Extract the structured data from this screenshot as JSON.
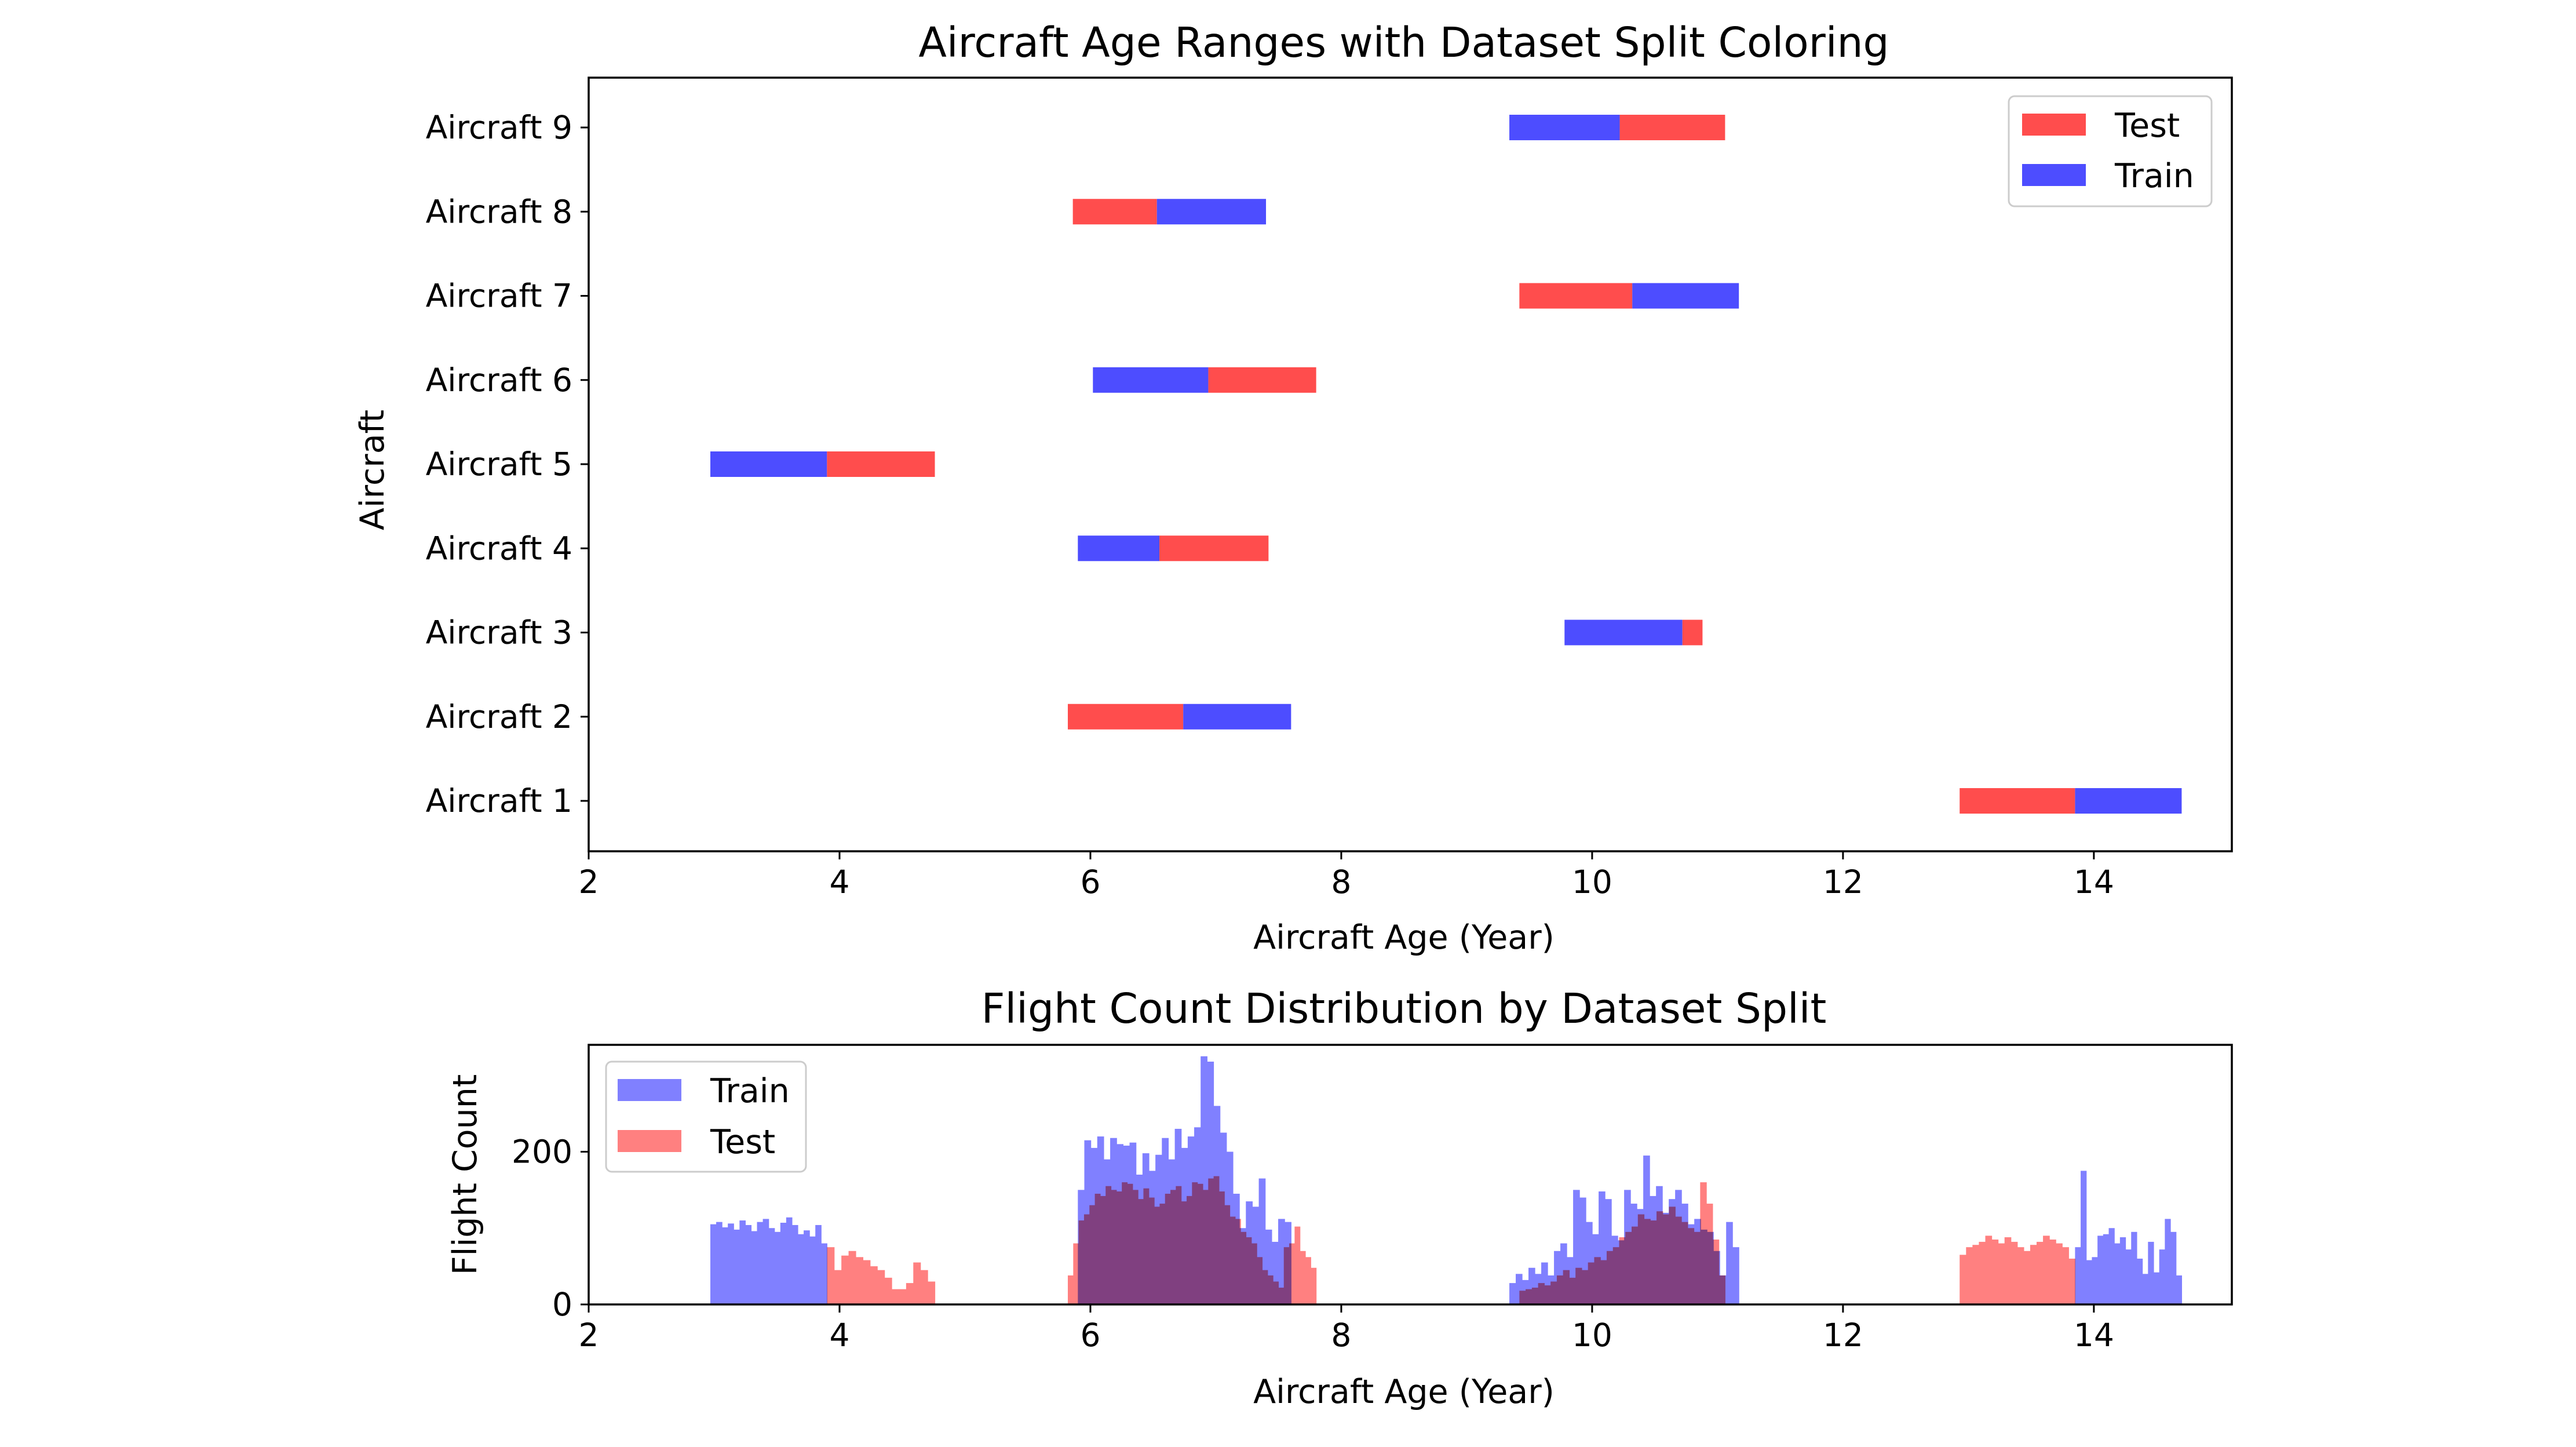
{
  "chart_data": [
    {
      "type": "gantt",
      "title": "Aircraft Age Ranges with Dataset Split Coloring",
      "xlabel": "Aircraft Age (Year)",
      "ylabel": "Aircraft",
      "xlim": [
        2,
        15.1
      ],
      "xticks": [
        "2",
        "4",
        "6",
        "8",
        "10",
        "12",
        "14"
      ],
      "grid": false,
      "legend": {
        "placement": "top-right",
        "entries": [
          "Test",
          "Train"
        ]
      },
      "colors": {
        "Test": "#ff4d4d",
        "Train": "#4d4dff"
      },
      "aircraft": [
        {
          "label": "Aircraft 1",
          "segments": [
            {
              "split": "Test",
              "start": 12.93,
              "end": 13.85
            },
            {
              "split": "Train",
              "start": 13.85,
              "end": 14.7
            }
          ]
        },
        {
          "label": "Aircraft 2",
          "segments": [
            {
              "split": "Test",
              "start": 5.82,
              "end": 6.74
            },
            {
              "split": "Train",
              "start": 6.74,
              "end": 7.6
            }
          ]
        },
        {
          "label": "Aircraft 3",
          "segments": [
            {
              "split": "Train",
              "start": 9.78,
              "end": 10.72
            },
            {
              "split": "Test",
              "start": 10.72,
              "end": 10.88
            }
          ]
        },
        {
          "label": "Aircraft 4",
          "segments": [
            {
              "split": "Train",
              "start": 5.9,
              "end": 6.55
            },
            {
              "split": "Test",
              "start": 6.55,
              "end": 7.42
            }
          ]
        },
        {
          "label": "Aircraft 5",
          "segments": [
            {
              "split": "Train",
              "start": 2.97,
              "end": 3.9
            },
            {
              "split": "Test",
              "start": 3.9,
              "end": 4.76
            }
          ]
        },
        {
          "label": "Aircraft 6",
          "segments": [
            {
              "split": "Train",
              "start": 6.02,
              "end": 6.94
            },
            {
              "split": "Test",
              "start": 6.94,
              "end": 7.8
            }
          ]
        },
        {
          "label": "Aircraft 7",
          "segments": [
            {
              "split": "Test",
              "start": 9.42,
              "end": 10.32
            },
            {
              "split": "Train",
              "start": 10.32,
              "end": 11.17
            }
          ]
        },
        {
          "label": "Aircraft 8",
          "segments": [
            {
              "split": "Test",
              "start": 5.86,
              "end": 6.53
            },
            {
              "split": "Train",
              "start": 6.53,
              "end": 7.4
            }
          ]
        },
        {
          "label": "Aircraft 9",
          "segments": [
            {
              "split": "Train",
              "start": 9.34,
              "end": 10.22
            },
            {
              "split": "Test",
              "start": 10.22,
              "end": 11.06
            }
          ]
        }
      ]
    },
    {
      "type": "histogram",
      "title": "Flight Count Distribution by Dataset Split",
      "xlabel": "Aircraft Age (Year)",
      "ylabel": "Flight Count",
      "xlim": [
        2,
        15.1
      ],
      "ylim": [
        0,
        340
      ],
      "xticks": [
        "2",
        "4",
        "6",
        "8",
        "10",
        "12",
        "14"
      ],
      "yticks": [
        "0",
        "200"
      ],
      "grid": false,
      "legend": {
        "placement": "top-left",
        "entries": [
          "Train",
          "Test"
        ]
      },
      "colors": {
        "Train": "#8080ff",
        "Test": "#ff8080",
        "overlap": "#b03a78"
      },
      "series": [
        {
          "name": "Train",
          "bins": [
            {
              "start": 2.97,
              "end": 3.9,
              "values": [
                105,
                108,
                101,
                106,
                98,
                110,
                104,
                96,
                108,
                112,
                100,
                95,
                107,
                114,
                104,
                92,
                97,
                89,
                104,
                80
              ]
            },
            {
              "start": 5.9,
              "end": 7.6,
              "values": [
                150,
                215,
                205,
                220,
                190,
                218,
                210,
                208,
                212,
                170,
                198,
                175,
                196,
                218,
                190,
                230,
                205,
                220,
                232,
                325,
                318,
                260,
                225,
                200,
                145,
                100,
                135,
                128,
                165,
                98,
                82,
                112,
                108
              ]
            },
            {
              "start": 9.34,
              "end": 11.17,
              "values": [
                28,
                40,
                32,
                48,
                40,
                55,
                38,
                70,
                80,
                62,
                150,
                140,
                108,
                92,
                148,
                138,
                90,
                84,
                150,
                132,
                125,
                195,
                142,
                155,
                120,
                138,
                150,
                132,
                105,
                112,
                98,
                95,
                70,
                38,
                108,
                75
              ]
            },
            {
              "start": 13.85,
              "end": 14.7,
              "values": [
                75,
                175,
                58,
                62,
                90,
                92,
                100,
                80,
                88,
                72,
                95,
                60,
                40,
                82,
                42,
                72,
                112,
                95,
                38
              ]
            }
          ]
        },
        {
          "name": "Test",
          "bins": [
            {
              "start": 3.9,
              "end": 4.76,
              "values": [
                75,
                45,
                64,
                70,
                62,
                58,
                50,
                45,
                35,
                20,
                20,
                28,
                55,
                45,
                30
              ]
            },
            {
              "start": 5.82,
              "end": 7.8,
              "values": [
                38,
                80,
                110,
                118,
                130,
                145,
                142,
                155,
                150,
                148,
                160,
                158,
                150,
                138,
                152,
                140,
                128,
                132,
                145,
                150,
                155,
                135,
                142,
                160,
                158,
                150,
                165,
                168,
                148,
                130,
                115,
                112,
                95,
                88,
                80,
                62,
                45,
                38,
                30,
                22,
                75,
                80,
                102,
                70,
                62,
                48
              ]
            },
            {
              "start": 9.42,
              "end": 11.06,
              "values": [
                18,
                20,
                22,
                28,
                25,
                30,
                38,
                45,
                35,
                48,
                45,
                55,
                62,
                58,
                70,
                75,
                88,
                95,
                102,
                118,
                112,
                110,
                122,
                118,
                128,
                115,
                108,
                100,
                95,
                160,
                132,
                85,
                38
              ]
            },
            {
              "start": 12.93,
              "end": 13.85,
              "values": [
                65,
                75,
                78,
                82,
                90,
                85,
                80,
                88,
                82,
                75,
                70,
                78,
                82,
                90,
                85,
                80,
                75,
                60
              ]
            }
          ]
        }
      ]
    }
  ]
}
